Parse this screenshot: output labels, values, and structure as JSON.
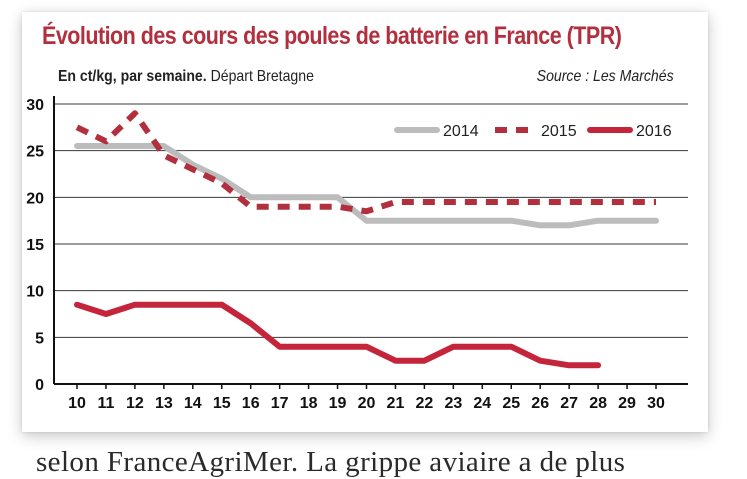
{
  "title": "Évolution des cours des poules de batterie en France (TPR)",
  "subtitle_bold": "En ct/kg, par semaine.",
  "subtitle_rest": " Départ Bretagne",
  "source": "Source : Les Marchés",
  "caption": "selon FranceAgriMer. La grippe aviaire a de plus",
  "colors": {
    "title": "#b2303e",
    "s2014": "#bcbcbc",
    "s2015": "#b2303e",
    "s2016": "#c4253a"
  },
  "chart_data": {
    "type": "line",
    "x": [
      10,
      11,
      12,
      13,
      14,
      15,
      16,
      17,
      18,
      19,
      20,
      21,
      22,
      23,
      24,
      25,
      26,
      27,
      28,
      29,
      30
    ],
    "xlim": [
      10,
      30
    ],
    "ylim": [
      0,
      30
    ],
    "yticks": [
      0,
      5,
      10,
      15,
      20,
      25,
      30
    ],
    "grid": "horizontal",
    "legend_position": "top-right",
    "series": [
      {
        "name": "2014",
        "style": "solid",
        "color": "#bcbcbc",
        "x": [
          10,
          11,
          12,
          13,
          14,
          15,
          16,
          17,
          18,
          19,
          20,
          21,
          22,
          23,
          24,
          25,
          26,
          27,
          28,
          29,
          30
        ],
        "values": [
          25.5,
          25.5,
          25.5,
          25.5,
          23.5,
          22,
          20,
          20,
          20,
          20,
          17.5,
          17.5,
          17.5,
          17.5,
          17.5,
          17.5,
          17,
          17,
          17.5,
          17.5,
          17.5
        ]
      },
      {
        "name": "2015",
        "style": "dashed",
        "color": "#b2303e",
        "x": [
          10,
          11,
          12,
          13,
          14,
          15,
          16,
          17,
          18,
          19,
          20,
          21,
          22,
          23,
          24,
          25,
          26,
          27,
          28,
          29,
          30
        ],
        "values": [
          27.5,
          26,
          29,
          24.5,
          23,
          21.5,
          19,
          19,
          19,
          19,
          18.5,
          19.5,
          19.5,
          19.5,
          19.5,
          19.5,
          19.5,
          19.5,
          19.5,
          19.5,
          19.5
        ]
      },
      {
        "name": "2016",
        "style": "solid",
        "color": "#c4253a",
        "x": [
          10,
          11,
          12,
          13,
          14,
          15,
          16,
          17,
          18,
          19,
          20,
          21,
          22,
          23,
          24,
          25,
          26,
          27,
          28
        ],
        "values": [
          8.5,
          7.5,
          8.5,
          8.5,
          8.5,
          8.5,
          6.5,
          4,
          4,
          4,
          4,
          2.5,
          2.5,
          4,
          4,
          4,
          2.5,
          2,
          2
        ]
      }
    ]
  }
}
